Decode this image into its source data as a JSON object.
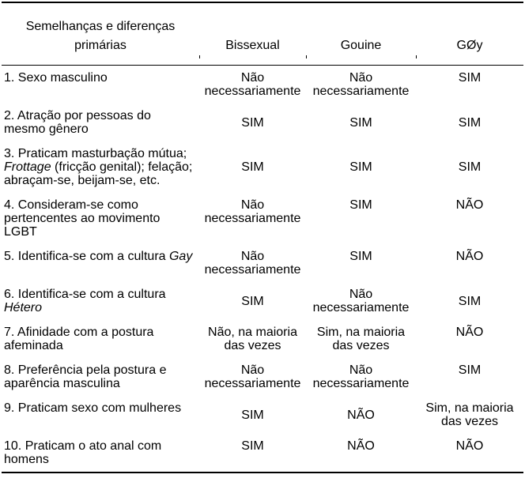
{
  "colors": {
    "text": "#000000",
    "background": "#ffffff",
    "rule": "#000000"
  },
  "table": {
    "header": {
      "col1_line1": "Semelhanças e diferenças",
      "col1_line2": "primárias",
      "col2": "Bissexual",
      "col3": "Gouine",
      "col4": "GØy"
    },
    "rows": [
      {
        "label": "1. Sexo masculino",
        "bissexual": "Não necessariamente",
        "gouine": "Não necessariamente",
        "goy": "SIM"
      },
      {
        "label": "2. Atração por pessoas do mesmo gênero",
        "bissexual": "SIM",
        "gouine": "SIM",
        "goy": "SIM"
      },
      {
        "label_pre": "3. Praticam masturbação mútua; ",
        "label_italic": "Frottage",
        "label_post": " (fricção genital); felação; abraçam-se, beijam-se, etc.",
        "bissexual": "SIM",
        "gouine": "SIM",
        "goy": "SIM"
      },
      {
        "label": "4. Consideram-se como pertencentes ao movimento LGBT",
        "bissexual": "Não necessariamente",
        "gouine": "SIM",
        "goy": "NÃO"
      },
      {
        "label_pre": "5. Identifica-se com a cultura ",
        "label_italic": "Gay",
        "label_post": "",
        "bissexual": "Não necessariamente",
        "gouine": "SIM",
        "goy": "NÃO"
      },
      {
        "label_pre": "6. Identifica-se com a cultura ",
        "label_italic": "Hétero",
        "label_post": "",
        "bissexual": "SIM",
        "gouine": "Não necessariamente",
        "goy": "SIM"
      },
      {
        "label": "7. Afinidade com a postura afeminada",
        "bissexual": "Não, na maioria das vezes",
        "gouine": "Sim, na maioria das vezes",
        "goy": "NÃO"
      },
      {
        "label": "8. Preferência pela postura e aparência masculina",
        "bissexual": "Não necessariamente",
        "gouine": "Não necessariamente",
        "goy": "SIM"
      },
      {
        "label": "9. Praticam sexo com mulheres",
        "bissexual": "SIM",
        "gouine": "NÃO",
        "goy": "Sim, na maioria das vezes"
      },
      {
        "label": "10. Praticam o ato anal com homens",
        "bissexual": "SIM",
        "gouine": "NÃO",
        "goy": "NÃO"
      }
    ]
  }
}
